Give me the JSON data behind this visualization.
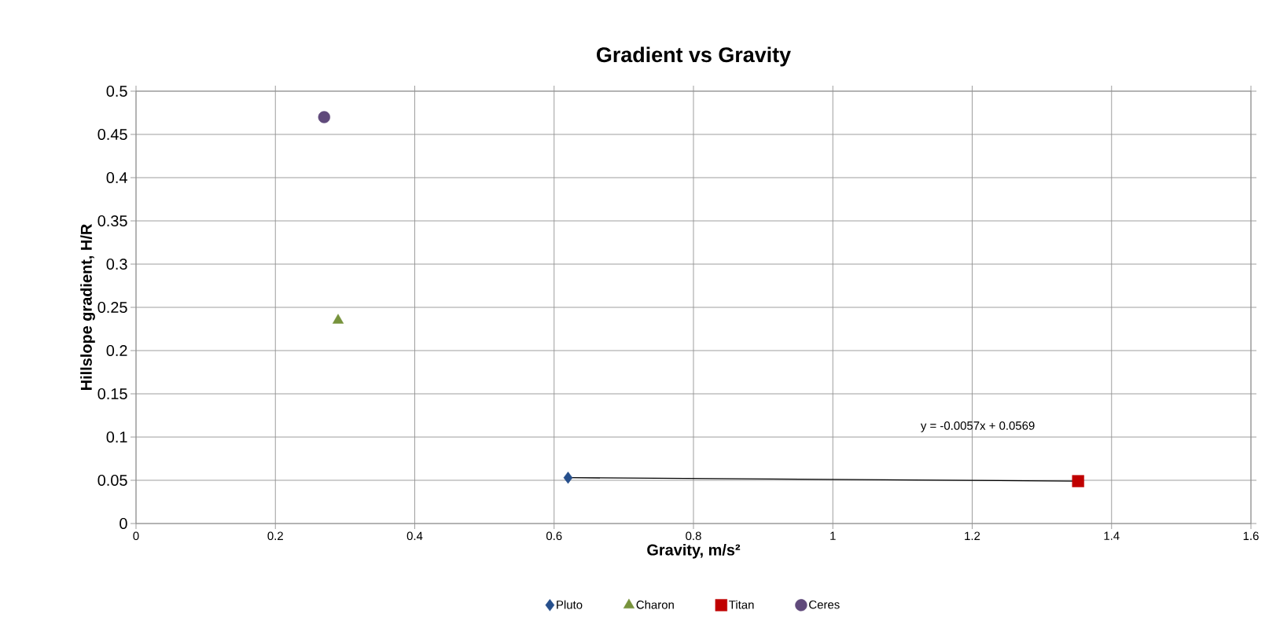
{
  "chart_data": {
    "type": "scatter",
    "title": "Gradient vs Gravity",
    "xlabel": "Gravity, m/s²",
    "ylabel": "Hillslope gradient, H/R",
    "series": [
      {
        "name": "Pluto",
        "color": "#264f8c",
        "marker": "diamond",
        "x": [
          0.62
        ],
        "values": [
          0.053
        ]
      },
      {
        "name": "Charon",
        "color": "#77933c",
        "marker": "triangle",
        "x": [
          0.29
        ],
        "values": [
          0.235
        ]
      },
      {
        "name": "Titan",
        "color": "#c00000",
        "marker": "square",
        "x": [
          1.352
        ],
        "values": [
          0.049
        ]
      },
      {
        "name": "Ceres",
        "color": "#604a7b",
        "marker": "circle",
        "x": [
          0.27
        ],
        "values": [
          0.47
        ]
      },
      {
        "type": "line",
        "color": "#000000",
        "marker": "none",
        "x": [
          0.62,
          1.352
        ],
        "values": [
          0.053,
          0.049
        ]
      }
    ],
    "annotations": [
      "y = -0.0057x + 0.0569"
    ],
    "xlim": [
      0,
      1.6
    ],
    "ylim": [
      0,
      0.5
    ],
    "xticks": [
      0,
      0.2,
      0.4,
      0.6,
      0.8,
      1,
      1.2,
      1.4,
      1.6
    ],
    "yticks": [
      0,
      0.05,
      0.1,
      0.15,
      0.2,
      0.25,
      0.3,
      0.35,
      0.4,
      0.45,
      0.5
    ],
    "grid": true,
    "legend": "bottom"
  }
}
